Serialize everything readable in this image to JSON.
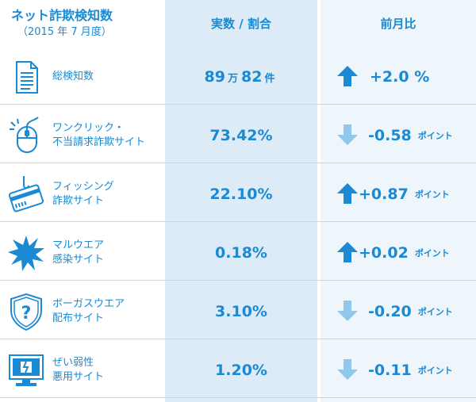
{
  "header": {
    "title": "ネット詐欺検知数",
    "subtitle": "（2015 年 7 月度）",
    "col_value": "実数 / 割合",
    "col_change": "前月比"
  },
  "colors": {
    "primary": "#1a8ad4",
    "up_arrow": "#1a8ad4",
    "down_arrow": "#8fc8ea",
    "value_col_bg": "#dcebf6",
    "change_col_bg": "#eef5fb"
  },
  "rows": [
    {
      "icon": "document-icon",
      "label1": "総検知数",
      "label2": "",
      "value_a": "89",
      "unit_a": "万",
      "value_b": "82",
      "unit_b": "件",
      "direction": "up",
      "change": "+2.0 %",
      "change_unit": ""
    },
    {
      "icon": "mouse-click-icon",
      "label1": "ワンクリック・",
      "label2": "不当請求詐欺サイト",
      "value": "73.42%",
      "direction": "down",
      "change": "-0.58",
      "change_unit": "ポイント"
    },
    {
      "icon": "credit-card-hook-icon",
      "label1": "フィッシング",
      "label2": "詐欺サイト",
      "value": "22.10%",
      "direction": "up",
      "change": "+0.87",
      "change_unit": "ポイント"
    },
    {
      "icon": "malware-burst-icon",
      "label1": "マルウエア",
      "label2": "感染サイト",
      "value": "0.18%",
      "direction": "up",
      "change": "+0.02",
      "change_unit": "ポイント"
    },
    {
      "icon": "question-shield-icon",
      "label1": "ボーガスウエア",
      "label2": "配布サイト",
      "value": "3.10%",
      "direction": "down",
      "change": "-0.20",
      "change_unit": "ポイント"
    },
    {
      "icon": "broken-monitor-icon",
      "label1": "ぜい弱性",
      "label2": "悪用サイト",
      "value": "1.20%",
      "direction": "down",
      "change": "-0.11",
      "change_unit": "ポイント"
    }
  ]
}
